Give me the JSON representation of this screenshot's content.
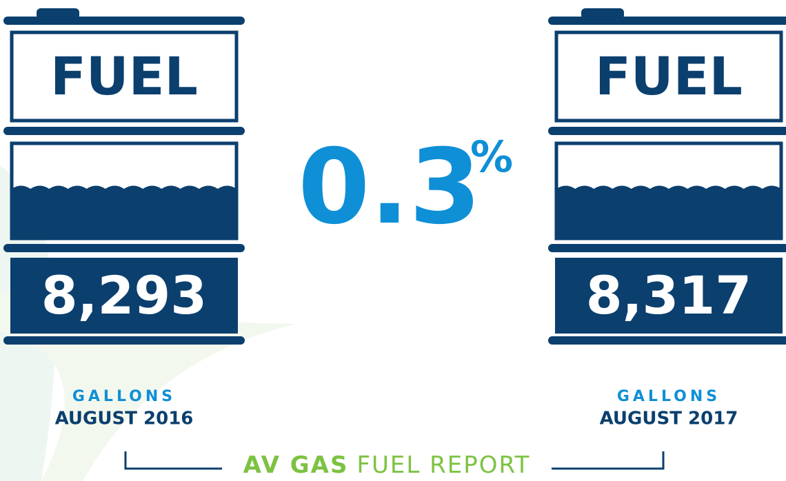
{
  "barrels": [
    {
      "label": "FUEL",
      "amount": "8,293",
      "unit": "GALLONS",
      "date": "AUGUST 2016"
    },
    {
      "label": "FUEL",
      "amount": "8,317",
      "unit": "GALLONS",
      "date": "AUGUST 2017"
    }
  ],
  "change": {
    "value": "0.3",
    "unit": "%"
  },
  "footer": {
    "highlight": "AV GAS",
    "rest": "FUEL REPORT"
  }
}
